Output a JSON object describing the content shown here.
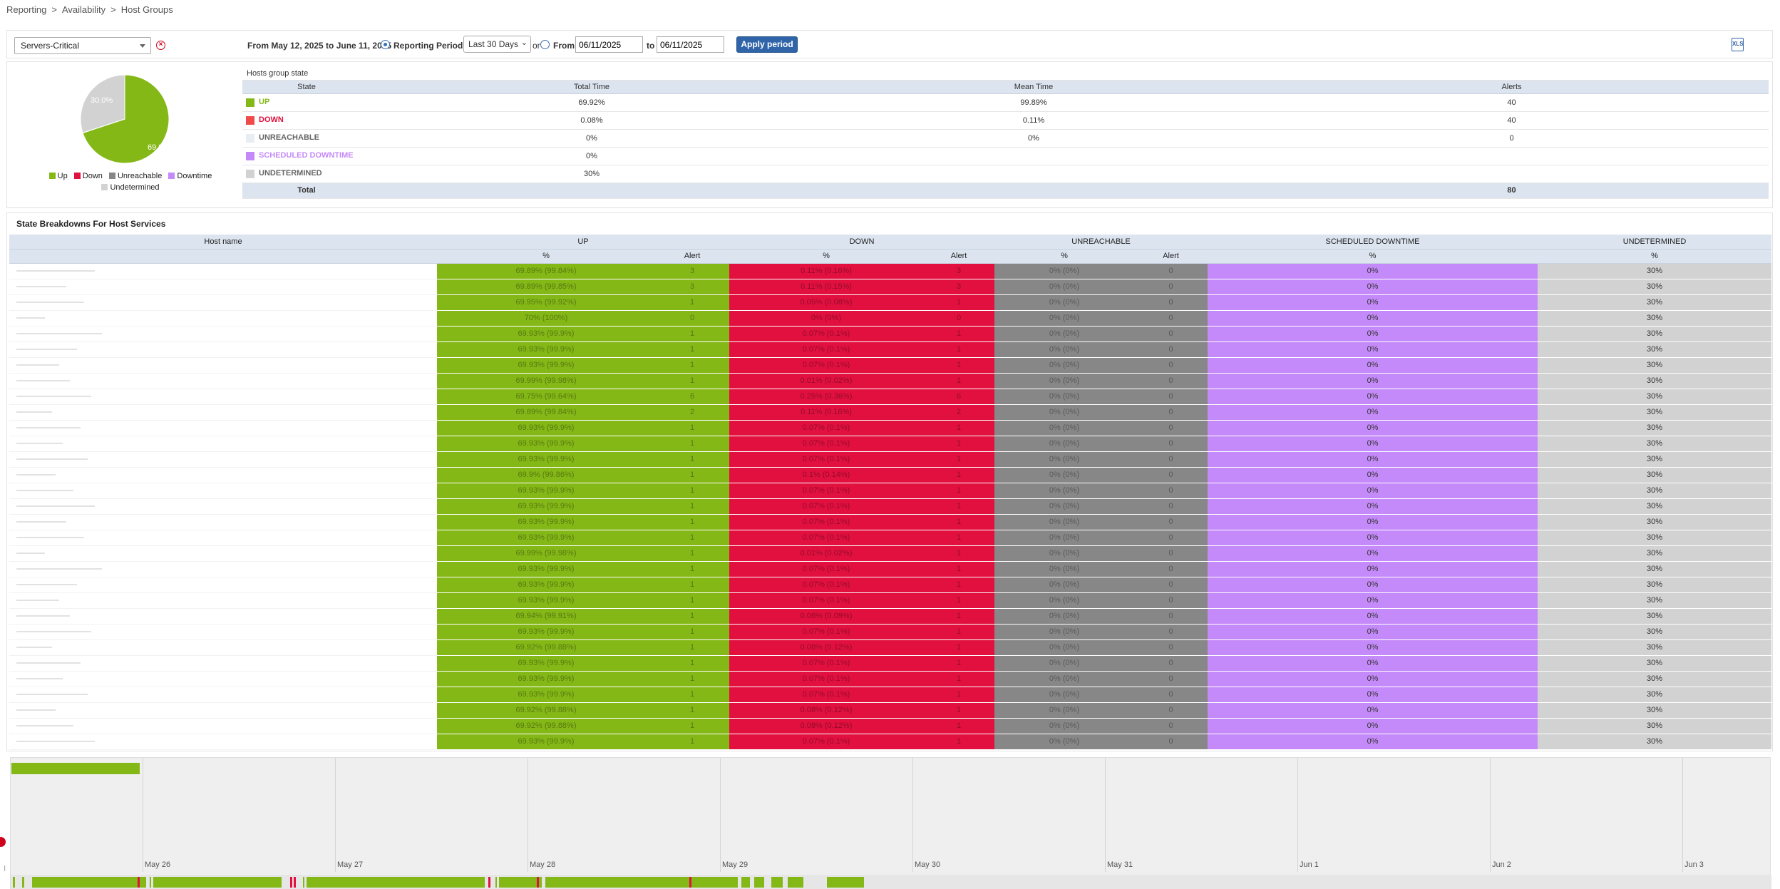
{
  "breadcrumb": [
    "Reporting",
    "Availability",
    "Host Groups"
  ],
  "toolbar": {
    "group_select": "Servers-Critical",
    "range_text": "From May 12, 2025 to June 11, 2025",
    "reporting_period_label": "Reporting Period :",
    "period_option": "Last 30 Days",
    "or_label": "or",
    "from_label": "From",
    "from_date": "06/11/2025",
    "to_label": "to",
    "to_date": "06/11/2025",
    "apply_label": "Apply period"
  },
  "pie": {
    "up_label": "69.9%",
    "undetermined_label": "30.0%",
    "legend": [
      "Up",
      "Down",
      "Unreachable",
      "Downtime",
      "Undetermined"
    ]
  },
  "colors": {
    "up": "#84b817",
    "down": "#e2103f",
    "unreachable": "#878787",
    "downtime": "#c58af9",
    "undetermined": "#d2d2d2"
  },
  "chart_data": {
    "type": "pie",
    "categories": [
      "Up",
      "Down",
      "Unreachable",
      "Downtime",
      "Undetermined"
    ],
    "values": [
      69.9,
      0.08,
      0,
      0,
      30.0
    ]
  },
  "state_table": {
    "caption": "Hosts group state",
    "headers": [
      "State",
      "Total Time",
      "Mean Time",
      "Alerts"
    ],
    "rows": [
      {
        "state": "UP",
        "total": "69.92%",
        "mean": "99.89%",
        "alerts": "40"
      },
      {
        "state": "DOWN",
        "total": "0.08%",
        "mean": "0.11%",
        "alerts": "40"
      },
      {
        "state": "UNREACHABLE",
        "total": "0%",
        "mean": "0%",
        "alerts": "0"
      },
      {
        "state": "SCHEDULED DOWNTIME",
        "total": "0%",
        "mean": "",
        "alerts": ""
      },
      {
        "state": "UNDETERMINED",
        "total": "30%",
        "mean": "",
        "alerts": ""
      }
    ],
    "total_label": "Total",
    "total_alerts": "80"
  },
  "breakdown": {
    "caption": "State Breakdowns For Host Services",
    "group_headers": [
      "Host name",
      "UP",
      "DOWN",
      "UNREACHABLE",
      "SCHEDULED DOWNTIME",
      "UNDETERMINED"
    ],
    "sub_headers": [
      "%",
      "Alert",
      "%",
      "Alert",
      "%",
      "Alert",
      "%",
      "%"
    ],
    "rows": [
      {
        "up": "69.89% (99.84%)",
        "ua": "3",
        "down": "0.11% (0.16%)",
        "da": "3",
        "unr": "0% (0%)",
        "ra": "0",
        "sd": "0%",
        "ud": "30%"
      },
      {
        "up": "69.89% (99.85%)",
        "ua": "3",
        "down": "0.11% (0.15%)",
        "da": "3",
        "unr": "0% (0%)",
        "ra": "0",
        "sd": "0%",
        "ud": "30%"
      },
      {
        "up": "69.95% (99.92%)",
        "ua": "1",
        "down": "0.05% (0.08%)",
        "da": "1",
        "unr": "0% (0%)",
        "ra": "0",
        "sd": "0%",
        "ud": "30%"
      },
      {
        "up": "70% (100%)",
        "ua": "0",
        "down": "0% (0%)",
        "da": "0",
        "unr": "0% (0%)",
        "ra": "0",
        "sd": "0%",
        "ud": "30%"
      },
      {
        "up": "69.93% (99.9%)",
        "ua": "1",
        "down": "0.07% (0.1%)",
        "da": "1",
        "unr": "0% (0%)",
        "ra": "0",
        "sd": "0%",
        "ud": "30%"
      },
      {
        "up": "69.93% (99.9%)",
        "ua": "1",
        "down": "0.07% (0.1%)",
        "da": "1",
        "unr": "0% (0%)",
        "ra": "0",
        "sd": "0%",
        "ud": "30%"
      },
      {
        "up": "69.93% (99.9%)",
        "ua": "1",
        "down": "0.07% (0.1%)",
        "da": "1",
        "unr": "0% (0%)",
        "ra": "0",
        "sd": "0%",
        "ud": "30%"
      },
      {
        "up": "69.99% (99.98%)",
        "ua": "1",
        "down": "0.01% (0.02%)",
        "da": "1",
        "unr": "0% (0%)",
        "ra": "0",
        "sd": "0%",
        "ud": "30%"
      },
      {
        "up": "69.75% (99.64%)",
        "ua": "6",
        "down": "0.25% (0.36%)",
        "da": "6",
        "unr": "0% (0%)",
        "ra": "0",
        "sd": "0%",
        "ud": "30%"
      },
      {
        "up": "69.89% (99.84%)",
        "ua": "2",
        "down": "0.11% (0.16%)",
        "da": "2",
        "unr": "0% (0%)",
        "ra": "0",
        "sd": "0%",
        "ud": "30%"
      },
      {
        "up": "69.93% (99.9%)",
        "ua": "1",
        "down": "0.07% (0.1%)",
        "da": "1",
        "unr": "0% (0%)",
        "ra": "0",
        "sd": "0%",
        "ud": "30%"
      },
      {
        "up": "69.93% (99.9%)",
        "ua": "1",
        "down": "0.07% (0.1%)",
        "da": "1",
        "unr": "0% (0%)",
        "ra": "0",
        "sd": "0%",
        "ud": "30%"
      },
      {
        "up": "69.93% (99.9%)",
        "ua": "1",
        "down": "0.07% (0.1%)",
        "da": "1",
        "unr": "0% (0%)",
        "ra": "0",
        "sd": "0%",
        "ud": "30%"
      },
      {
        "up": "69.9% (99.86%)",
        "ua": "1",
        "down": "0.1% (0.14%)",
        "da": "1",
        "unr": "0% (0%)",
        "ra": "0",
        "sd": "0%",
        "ud": "30%"
      },
      {
        "up": "69.93% (99.9%)",
        "ua": "1",
        "down": "0.07% (0.1%)",
        "da": "1",
        "unr": "0% (0%)",
        "ra": "0",
        "sd": "0%",
        "ud": "30%"
      },
      {
        "up": "69.93% (99.9%)",
        "ua": "1",
        "down": "0.07% (0.1%)",
        "da": "1",
        "unr": "0% (0%)",
        "ra": "0",
        "sd": "0%",
        "ud": "30%"
      },
      {
        "up": "69.93% (99.9%)",
        "ua": "1",
        "down": "0.07% (0.1%)",
        "da": "1",
        "unr": "0% (0%)",
        "ra": "0",
        "sd": "0%",
        "ud": "30%"
      },
      {
        "up": "69.93% (99.9%)",
        "ua": "1",
        "down": "0.07% (0.1%)",
        "da": "1",
        "unr": "0% (0%)",
        "ra": "0",
        "sd": "0%",
        "ud": "30%"
      },
      {
        "up": "69.99% (99.98%)",
        "ua": "1",
        "down": "0.01% (0.02%)",
        "da": "1",
        "unr": "0% (0%)",
        "ra": "0",
        "sd": "0%",
        "ud": "30%"
      },
      {
        "up": "69.93% (99.9%)",
        "ua": "1",
        "down": "0.07% (0.1%)",
        "da": "1",
        "unr": "0% (0%)",
        "ra": "0",
        "sd": "0%",
        "ud": "30%"
      },
      {
        "up": "69.93% (99.9%)",
        "ua": "1",
        "down": "0.07% (0.1%)",
        "da": "1",
        "unr": "0% (0%)",
        "ra": "0",
        "sd": "0%",
        "ud": "30%"
      },
      {
        "up": "69.93% (99.9%)",
        "ua": "1",
        "down": "0.07% (0.1%)",
        "da": "1",
        "unr": "0% (0%)",
        "ra": "0",
        "sd": "0%",
        "ud": "30%"
      },
      {
        "up": "69.94% (99.91%)",
        "ua": "1",
        "down": "0.06% (0.09%)",
        "da": "1",
        "unr": "0% (0%)",
        "ra": "0",
        "sd": "0%",
        "ud": "30%"
      },
      {
        "up": "69.93% (99.9%)",
        "ua": "1",
        "down": "0.07% (0.1%)",
        "da": "1",
        "unr": "0% (0%)",
        "ra": "0",
        "sd": "0%",
        "ud": "30%"
      },
      {
        "up": "69.92% (99.88%)",
        "ua": "1",
        "down": "0.08% (0.12%)",
        "da": "1",
        "unr": "0% (0%)",
        "ra": "0",
        "sd": "0%",
        "ud": "30%"
      },
      {
        "up": "69.93% (99.9%)",
        "ua": "1",
        "down": "0.07% (0.1%)",
        "da": "1",
        "unr": "0% (0%)",
        "ra": "0",
        "sd": "0%",
        "ud": "30%"
      },
      {
        "up": "69.93% (99.9%)",
        "ua": "1",
        "down": "0.07% (0.1%)",
        "da": "1",
        "unr": "0% (0%)",
        "ra": "0",
        "sd": "0%",
        "ud": "30%"
      },
      {
        "up": "69.93% (99.9%)",
        "ua": "1",
        "down": "0.07% (0.1%)",
        "da": "1",
        "unr": "0% (0%)",
        "ra": "0",
        "sd": "0%",
        "ud": "30%"
      },
      {
        "up": "69.92% (99.88%)",
        "ua": "1",
        "down": "0.08% (0.12%)",
        "da": "1",
        "unr": "0% (0%)",
        "ra": "0",
        "sd": "0%",
        "ud": "30%"
      },
      {
        "up": "69.92% (99.88%)",
        "ua": "1",
        "down": "0.08% (0.12%)",
        "da": "1",
        "unr": "0% (0%)",
        "ra": "0",
        "sd": "0%",
        "ud": "30%"
      },
      {
        "up": "69.93% (99.9%)",
        "ua": "1",
        "down": "0.07% (0.1%)",
        "da": "1",
        "unr": "0% (0%)",
        "ra": "0",
        "sd": "0%",
        "ud": "30%"
      }
    ]
  },
  "timeline": {
    "day_labels": [
      "May 26",
      "May 27",
      "May 28",
      "May 29",
      "May 30",
      "May 31",
      "Jun 1",
      "Jun 2",
      "Jun 3"
    ]
  }
}
